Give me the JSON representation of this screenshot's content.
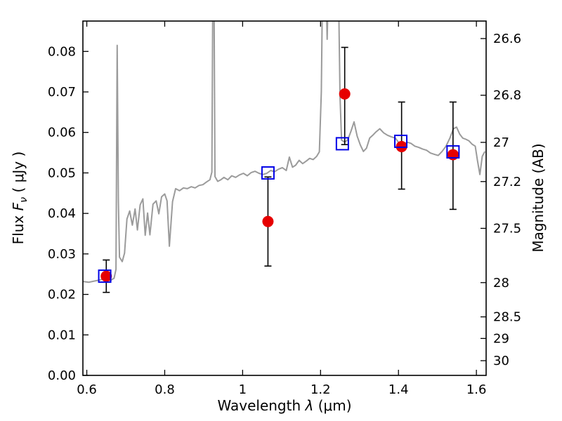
{
  "chart_data": {
    "type": "line",
    "title": "",
    "grid": false,
    "legend": null,
    "labels": {
      "x_prefix": "Wavelength ",
      "x_symbol": "λ",
      "x_suffix": " (μm)",
      "left_prefix": "Flux ",
      "left_symbol": "F",
      "left_sub": "ν",
      "left_suffix": " ( μJy )",
      "right": "Magnitude (AB)"
    },
    "xlim": [
      0.59,
      1.625
    ],
    "ylim": [
      0.0,
      0.0875
    ],
    "ab_zero_point": 23.9,
    "x_ticks": [
      {
        "v": 0.6,
        "label": "0.6"
      },
      {
        "v": 0.8,
        "label": "0.8"
      },
      {
        "v": 1.0,
        "label": "1"
      },
      {
        "v": 1.2,
        "label": "1.2"
      },
      {
        "v": 1.4,
        "label": "1.4"
      },
      {
        "v": 1.6,
        "label": "1.6"
      }
    ],
    "y_ticks_left": [
      {
        "v": 0.0,
        "label": "0.00"
      },
      {
        "v": 0.01,
        "label": "0.01"
      },
      {
        "v": 0.02,
        "label": "0.02"
      },
      {
        "v": 0.03,
        "label": "0.03"
      },
      {
        "v": 0.04,
        "label": "0.04"
      },
      {
        "v": 0.05,
        "label": "0.05"
      },
      {
        "v": 0.06,
        "label": "0.06"
      },
      {
        "v": 0.07,
        "label": "0.07"
      },
      {
        "v": 0.08,
        "label": "0.08"
      }
    ],
    "y_ticks_right": [
      {
        "m": 26.6,
        "label": "26.6"
      },
      {
        "m": 26.8,
        "label": "26.8"
      },
      {
        "m": 27.0,
        "label": "27"
      },
      {
        "m": 27.2,
        "label": "27.2"
      },
      {
        "m": 27.5,
        "label": "27.5"
      },
      {
        "m": 28.0,
        "label": "28"
      },
      {
        "m": 28.5,
        "label": "28.5"
      },
      {
        "m": 29.0,
        "label": "29"
      },
      {
        "m": 30.0,
        "label": "30"
      }
    ],
    "series": [
      {
        "name": "model-spectrum",
        "type": "line",
        "color": "#9b9b9b",
        "width": 2,
        "points": [
          [
            0.59,
            0.0232
          ],
          [
            0.605,
            0.023
          ],
          [
            0.62,
            0.0233
          ],
          [
            0.635,
            0.0236
          ],
          [
            0.648,
            0.024
          ],
          [
            0.66,
            0.0234
          ],
          [
            0.67,
            0.024
          ],
          [
            0.675,
            0.0262
          ],
          [
            0.678,
            0.0815
          ],
          [
            0.681,
            0.043
          ],
          [
            0.684,
            0.0292
          ],
          [
            0.691,
            0.0281
          ],
          [
            0.697,
            0.0302
          ],
          [
            0.703,
            0.0386
          ],
          [
            0.71,
            0.0406
          ],
          [
            0.717,
            0.0371
          ],
          [
            0.724,
            0.0411
          ],
          [
            0.73,
            0.0359
          ],
          [
            0.737,
            0.0421
          ],
          [
            0.744,
            0.0436
          ],
          [
            0.75,
            0.0346
          ],
          [
            0.756,
            0.0401
          ],
          [
            0.762,
            0.0347
          ],
          [
            0.77,
            0.0423
          ],
          [
            0.778,
            0.0431
          ],
          [
            0.785,
            0.0399
          ],
          [
            0.792,
            0.0441
          ],
          [
            0.8,
            0.0448
          ],
          [
            0.806,
            0.0431
          ],
          [
            0.812,
            0.0319
          ],
          [
            0.82,
            0.0429
          ],
          [
            0.828,
            0.0461
          ],
          [
            0.838,
            0.0456
          ],
          [
            0.848,
            0.0463
          ],
          [
            0.858,
            0.0461
          ],
          [
            0.868,
            0.0466
          ],
          [
            0.878,
            0.0463
          ],
          [
            0.888,
            0.0469
          ],
          [
            0.898,
            0.0471
          ],
          [
            0.908,
            0.0478
          ],
          [
            0.916,
            0.0483
          ],
          [
            0.921,
            0.0502
          ],
          [
            0.9235,
            0.096
          ],
          [
            0.9265,
            0.096
          ],
          [
            0.929,
            0.0491
          ],
          [
            0.936,
            0.0479
          ],
          [
            0.944,
            0.0483
          ],
          [
            0.952,
            0.0489
          ],
          [
            0.962,
            0.0483
          ],
          [
            0.972,
            0.0493
          ],
          [
            0.982,
            0.0489
          ],
          [
            0.992,
            0.0495
          ],
          [
            1.002,
            0.0499
          ],
          [
            1.012,
            0.0493
          ],
          [
            1.022,
            0.0501
          ],
          [
            1.032,
            0.0504
          ],
          [
            1.042,
            0.0499
          ],
          [
            1.052,
            0.0496
          ],
          [
            1.062,
            0.0499
          ],
          [
            1.072,
            0.0506
          ],
          [
            1.082,
            0.0503
          ],
          [
            1.092,
            0.0509
          ],
          [
            1.102,
            0.0513
          ],
          [
            1.112,
            0.0506
          ],
          [
            1.12,
            0.0539
          ],
          [
            1.128,
            0.0514
          ],
          [
            1.136,
            0.0519
          ],
          [
            1.145,
            0.0531
          ],
          [
            1.154,
            0.0523
          ],
          [
            1.163,
            0.0529
          ],
          [
            1.172,
            0.0536
          ],
          [
            1.181,
            0.0533
          ],
          [
            1.19,
            0.0541
          ],
          [
            1.197,
            0.0552
          ],
          [
            1.202,
            0.07
          ],
          [
            1.205,
            0.096
          ],
          [
            1.214,
            0.096
          ],
          [
            1.217,
            0.083
          ],
          [
            1.22,
            0.096
          ],
          [
            1.246,
            0.096
          ],
          [
            1.25,
            0.069
          ],
          [
            1.254,
            0.0581
          ],
          [
            1.262,
            0.0576
          ],
          [
            1.27,
            0.0582
          ],
          [
            1.278,
            0.0603
          ],
          [
            1.286,
            0.0626
          ],
          [
            1.294,
            0.0591
          ],
          [
            1.302,
            0.0569
          ],
          [
            1.31,
            0.0553
          ],
          [
            1.318,
            0.0561
          ],
          [
            1.326,
            0.0586
          ],
          [
            1.334,
            0.0593
          ],
          [
            1.342,
            0.0601
          ],
          [
            1.352,
            0.0609
          ],
          [
            1.362,
            0.0599
          ],
          [
            1.372,
            0.0593
          ],
          [
            1.382,
            0.0589
          ],
          [
            1.392,
            0.0586
          ],
          [
            1.402,
            0.0573
          ],
          [
            1.412,
            0.0569
          ],
          [
            1.422,
            0.0576
          ],
          [
            1.432,
            0.0573
          ],
          [
            1.442,
            0.0566
          ],
          [
            1.452,
            0.0563
          ],
          [
            1.462,
            0.0559
          ],
          [
            1.472,
            0.0556
          ],
          [
            1.482,
            0.0549
          ],
          [
            1.492,
            0.0546
          ],
          [
            1.502,
            0.0543
          ],
          [
            1.512,
            0.0553
          ],
          [
            1.522,
            0.0566
          ],
          [
            1.532,
            0.0586
          ],
          [
            1.541,
            0.0609
          ],
          [
            1.549,
            0.0613
          ],
          [
            1.557,
            0.0596
          ],
          [
            1.565,
            0.0586
          ],
          [
            1.573,
            0.0583
          ],
          [
            1.581,
            0.0579
          ],
          [
            1.589,
            0.0571
          ],
          [
            1.597,
            0.0566
          ],
          [
            1.603,
            0.0529
          ],
          [
            1.609,
            0.0496
          ],
          [
            1.615,
            0.0541
          ],
          [
            1.622,
            0.0553
          ]
        ]
      },
      {
        "name": "observed-photometry",
        "type": "scatter",
        "marker": "circle",
        "color": "#e60000",
        "errorbar_color": "#000000",
        "points": [
          {
            "x": 0.65,
            "y": 0.0245,
            "err_minus": 0.004,
            "err_plus": 0.004
          },
          {
            "x": 1.065,
            "y": 0.038,
            "err_minus": 0.011,
            "err_plus": 0.011
          },
          {
            "x": 1.262,
            "y": 0.0695,
            "err_minus": 0.0125,
            "err_plus": 0.0115
          },
          {
            "x": 1.408,
            "y": 0.0565,
            "err_minus": 0.0105,
            "err_plus": 0.011
          },
          {
            "x": 1.54,
            "y": 0.0545,
            "err_minus": 0.0135,
            "err_plus": 0.013
          }
        ]
      },
      {
        "name": "model-photometry",
        "type": "scatter",
        "marker": "open-square",
        "color": "#0000e6",
        "points": [
          {
            "x": 0.646,
            "y": 0.0245
          },
          {
            "x": 1.065,
            "y": 0.05
          },
          {
            "x": 1.256,
            "y": 0.0572
          },
          {
            "x": 1.406,
            "y": 0.0578
          },
          {
            "x": 1.54,
            "y": 0.0552
          }
        ]
      }
    ]
  }
}
